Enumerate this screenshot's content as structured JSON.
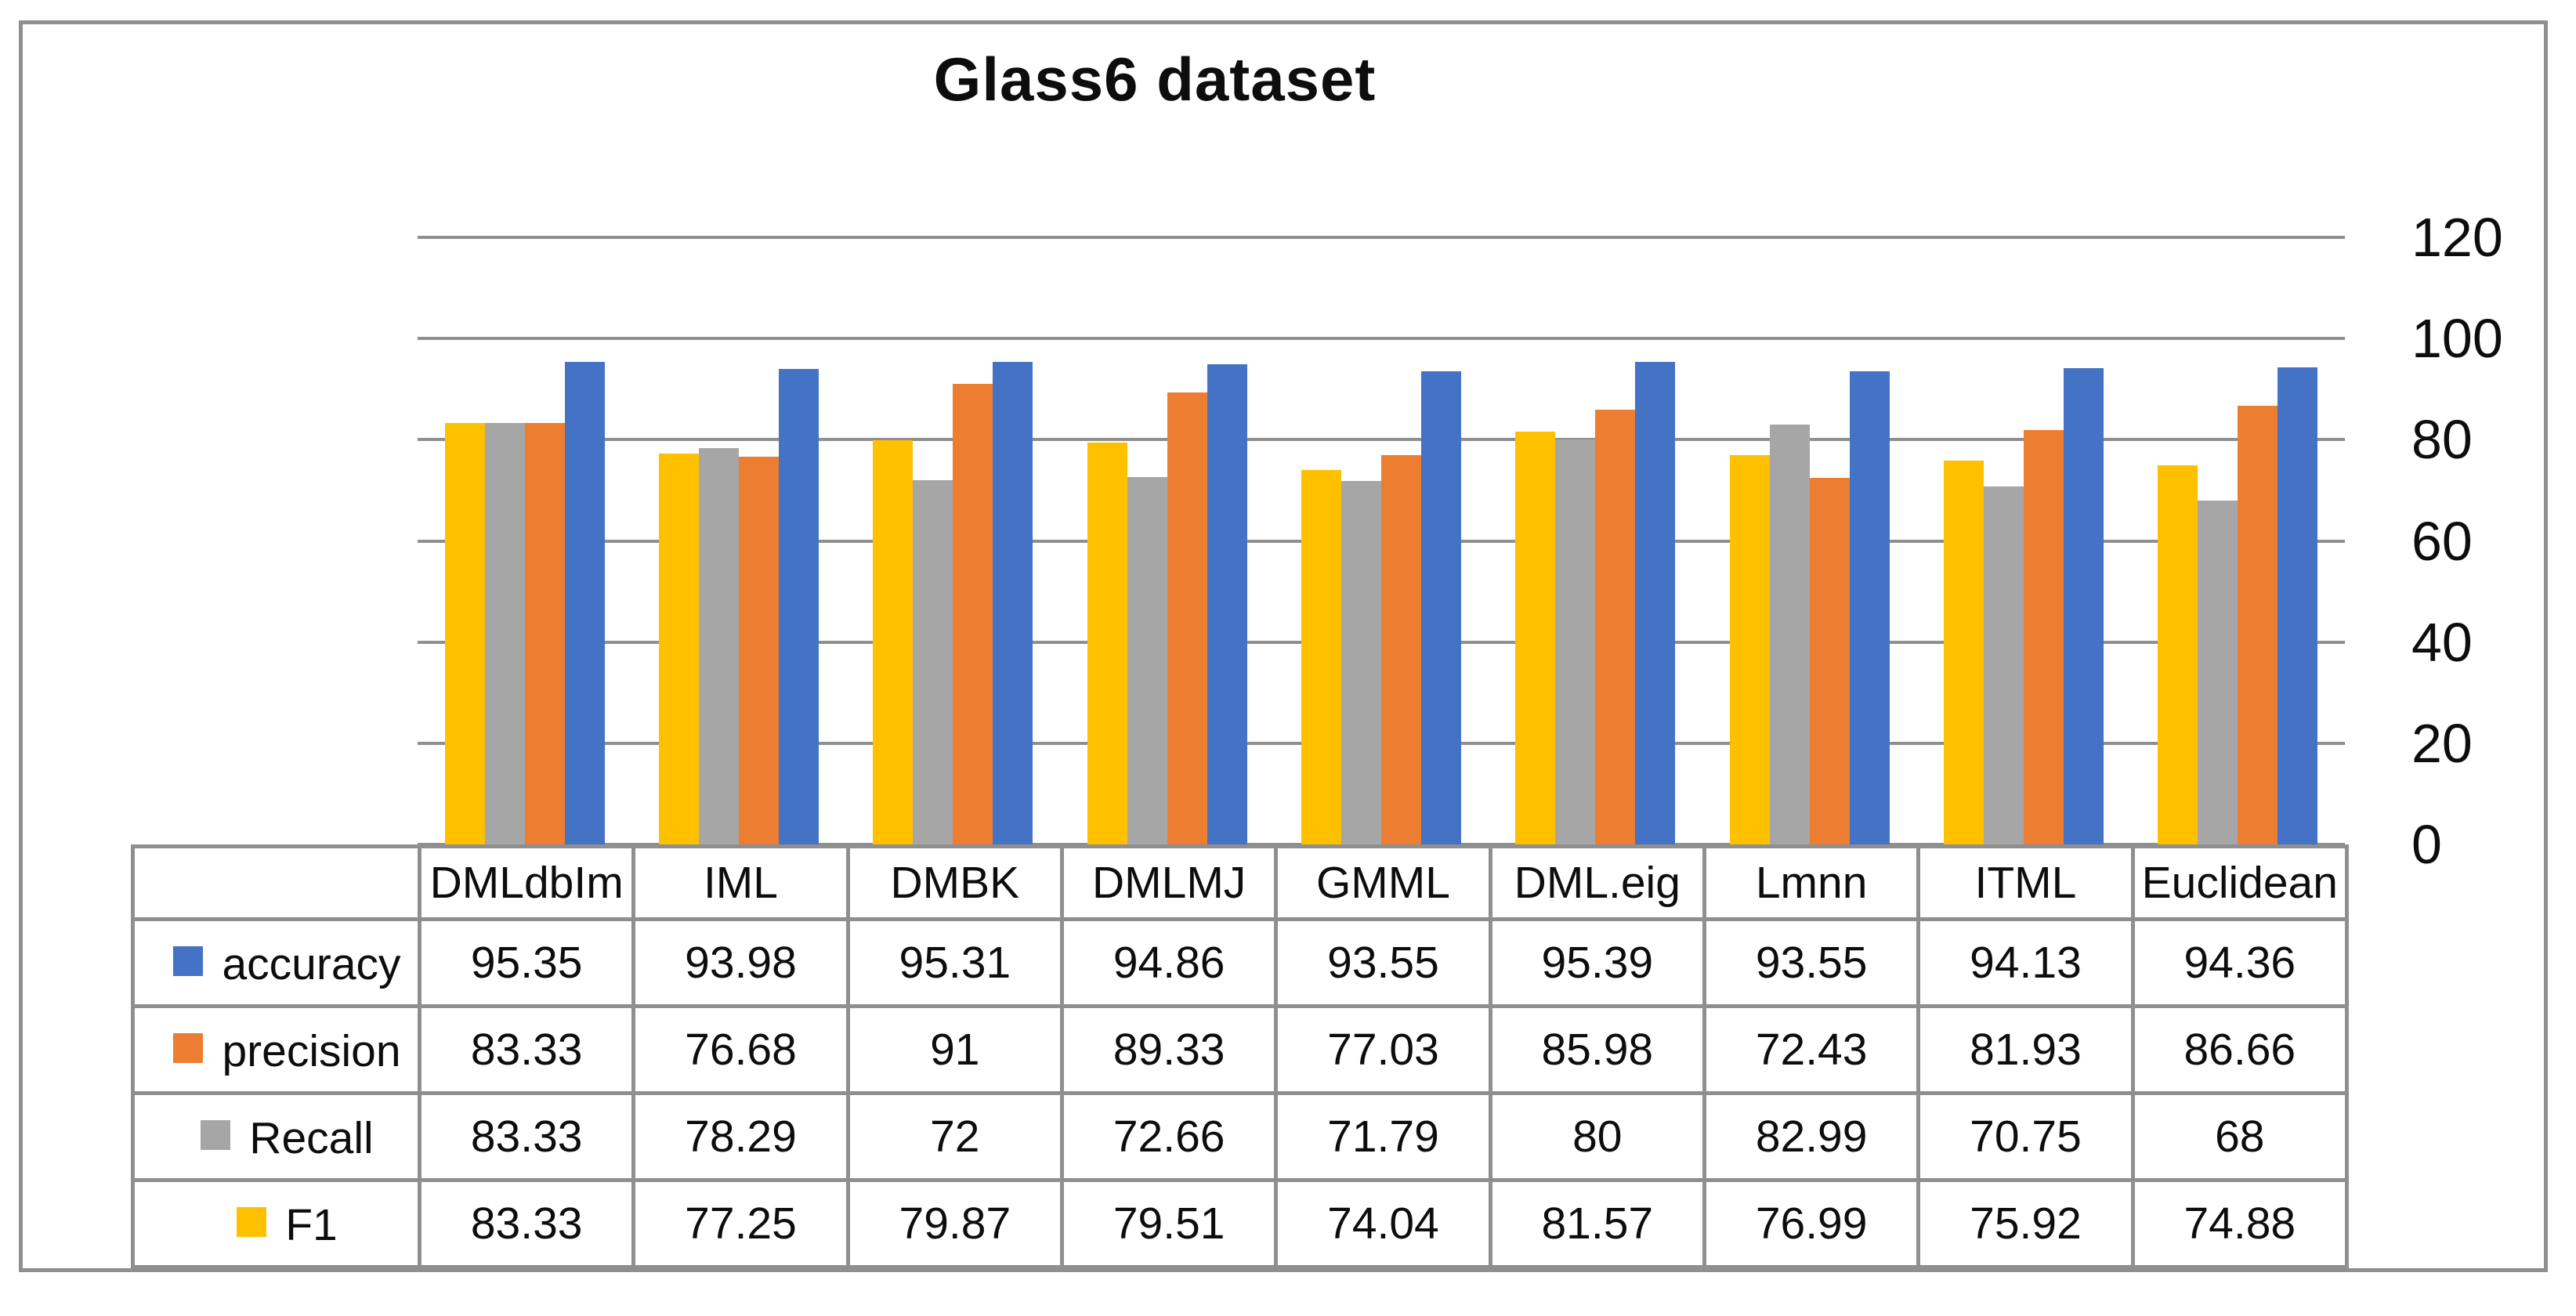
{
  "chart_data": {
    "type": "bar",
    "title": "Glass6 dataset",
    "categories": [
      "DMLdbIm",
      "IML",
      "DMBK",
      "DMLMJ",
      "GMML",
      "DML.eig",
      "Lmnn",
      "ITML",
      "Euclidean"
    ],
    "series": [
      {
        "name": "accuracy",
        "color": "#4472C4",
        "values": [
          95.35,
          93.98,
          95.31,
          94.86,
          93.55,
          95.39,
          93.55,
          94.13,
          94.36
        ]
      },
      {
        "name": "precision",
        "color": "#ED7D31",
        "values": [
          83.33,
          76.68,
          91,
          89.33,
          77.03,
          85.98,
          72.43,
          81.93,
          86.66
        ]
      },
      {
        "name": "Recall",
        "color": "#A6A6A6",
        "values": [
          83.33,
          78.29,
          72,
          72.66,
          71.79,
          80,
          82.99,
          70.75,
          68
        ]
      },
      {
        "name": "F1",
        "color": "#FFC000",
        "values": [
          83.33,
          77.25,
          79.87,
          79.51,
          74.04,
          81.57,
          76.99,
          75.92,
          74.88
        ]
      }
    ],
    "legend_order": [
      "accuracy",
      "precision",
      "Recall",
      "F1"
    ],
    "bar_draw_order": [
      "F1",
      "Recall",
      "precision",
      "accuracy"
    ],
    "y_axis": {
      "min": 0,
      "max": 120,
      "step": 20,
      "ticks": [
        120,
        100,
        80,
        60,
        40,
        20,
        0
      ],
      "position": "right"
    },
    "gridlines": true,
    "grid_color": "#8f8f8f",
    "frame_color": "#8f8f8f",
    "legend_position": "table-left"
  }
}
